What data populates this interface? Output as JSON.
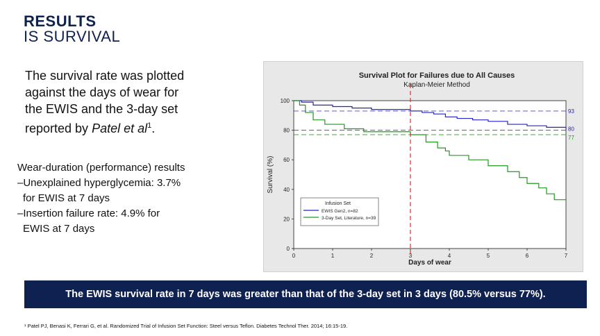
{
  "heading": {
    "line1": "RESULTS",
    "line2": "IS SURVIVAL"
  },
  "lead": {
    "text": "The survival rate was plotted against the days of wear for the EWIS and the 3-day set reported by ",
    "italic": "Patel et al",
    "sup": "1",
    "end": "."
  },
  "performance": {
    "title": "Wear-duration (performance) results",
    "item1_a": "–Unexplained hyperglycemia: 3.7%",
    "item1_b": "for EWIS at 7 days",
    "item2_a": "–Insertion failure rate: 4.9% for",
    "item2_b": "EWIS at 7 days"
  },
  "banner": "The EWIS survival rate in 7 days  was greater than that of the 3-day set in 3 days (80.5% versus 77%).",
  "footnote": "¹ Patel PJ, Benasi K, Ferrari G, et al. Randomized Trial of Infusion Set Function: Steel versus Teflon. Diabetes Technol Ther. 2014; 16:15-19.",
  "chart_data": {
    "type": "line",
    "title": "Survival Plot for Failures due to All Causes",
    "subtitle": "Kaplan-Meier Method",
    "xlabel": "Days of wear",
    "ylabel": "Survival (%)",
    "xlim": [
      0,
      7
    ],
    "ylim": [
      0,
      100
    ],
    "xticks": [
      0,
      1,
      2,
      3,
      4,
      5,
      6,
      7
    ],
    "yticks": [
      0,
      20,
      40,
      60,
      80,
      100
    ],
    "legend_title": "Infusion Set",
    "legend_position": "bottom-left",
    "colors": {
      "ewis": "#2323c8",
      "threeday": "#1e9a1e"
    },
    "reference_vline": 3,
    "reference_hlines": [
      {
        "value": 93,
        "label": "93",
        "color": "#2323c8"
      },
      {
        "value": 80,
        "label": "80",
        "color": "#2323c8"
      },
      {
        "value": 77,
        "label": "77",
        "color": "#1e9a1e"
      }
    ],
    "series": [
      {
        "name": "EWIS Gen2, n=82",
        "color": "#2323c8",
        "x": [
          0,
          0.2,
          0.5,
          1.0,
          1.5,
          2.0,
          2.5,
          3.0,
          3.3,
          3.6,
          3.9,
          4.2,
          4.6,
          5.0,
          5.5,
          6.0,
          6.5,
          7.0
        ],
        "y": [
          100,
          99,
          97,
          96,
          95,
          94,
          94,
          93,
          92,
          91,
          89,
          88,
          87,
          86,
          84,
          83,
          82,
          80.5
        ]
      },
      {
        "name": "3-Day Set, Literature, n=39",
        "color": "#1e9a1e",
        "x": [
          0,
          0.15,
          0.3,
          0.5,
          0.8,
          1.3,
          1.8,
          2.0,
          3.0,
          3.4,
          3.7,
          3.9,
          4.0,
          4.5,
          5.0,
          5.5,
          5.8,
          6.0,
          6.3,
          6.5,
          6.7,
          7.0
        ],
        "y": [
          100,
          97,
          92,
          87,
          84,
          81,
          79,
          79,
          77,
          72,
          68,
          66,
          63,
          60,
          56,
          52,
          48,
          44,
          41,
          37,
          33,
          33
        ]
      }
    ]
  }
}
